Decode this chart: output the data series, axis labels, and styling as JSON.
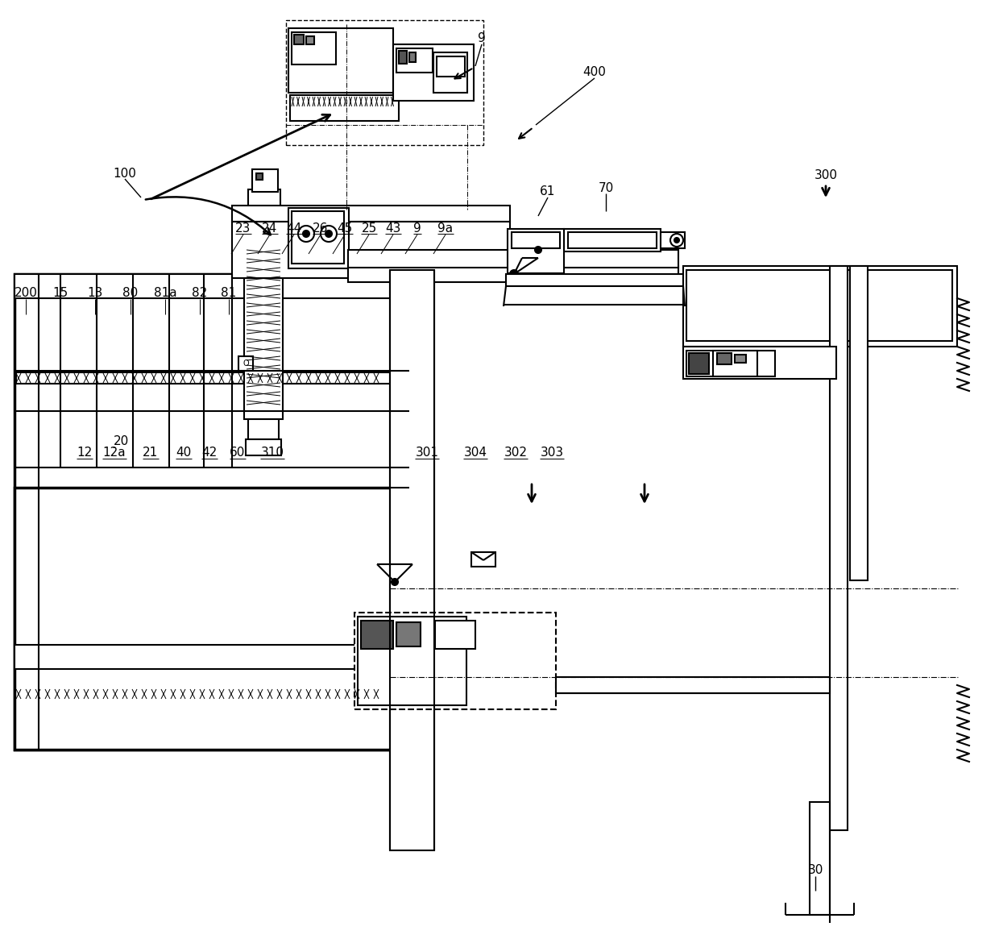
{
  "bg_color": "#ffffff",
  "line_color": "#000000",
  "line_width": 1.5,
  "thin_line": 0.8,
  "thick_line": 2.5,
  "fs": 11,
  "label_row1": [
    [
      "23",
      302
    ],
    [
      "24",
      335
    ],
    [
      "44",
      365
    ],
    [
      "26",
      398
    ],
    [
      "45",
      428
    ],
    [
      "25",
      458
    ],
    [
      "43",
      488
    ],
    [
      "9",
      518
    ],
    [
      "9a",
      553
    ]
  ],
  "label_row2": [
    [
      "200",
      32
    ],
    [
      "15",
      75
    ],
    [
      "13",
      118
    ],
    [
      "80",
      162
    ],
    [
      "81a",
      205
    ],
    [
      "82",
      248
    ],
    [
      "81",
      284
    ]
  ],
  "label_row3": [
    [
      "12",
      105
    ],
    [
      "12a",
      142
    ],
    [
      "21",
      187
    ],
    [
      "40",
      228
    ],
    [
      "42",
      260
    ],
    [
      "60",
      295
    ],
    [
      "310",
      338
    ]
  ],
  "label_row4": [
    [
      "301",
      530
    ],
    [
      "304",
      590
    ],
    [
      "302",
      640
    ],
    [
      "303",
      685
    ]
  ]
}
